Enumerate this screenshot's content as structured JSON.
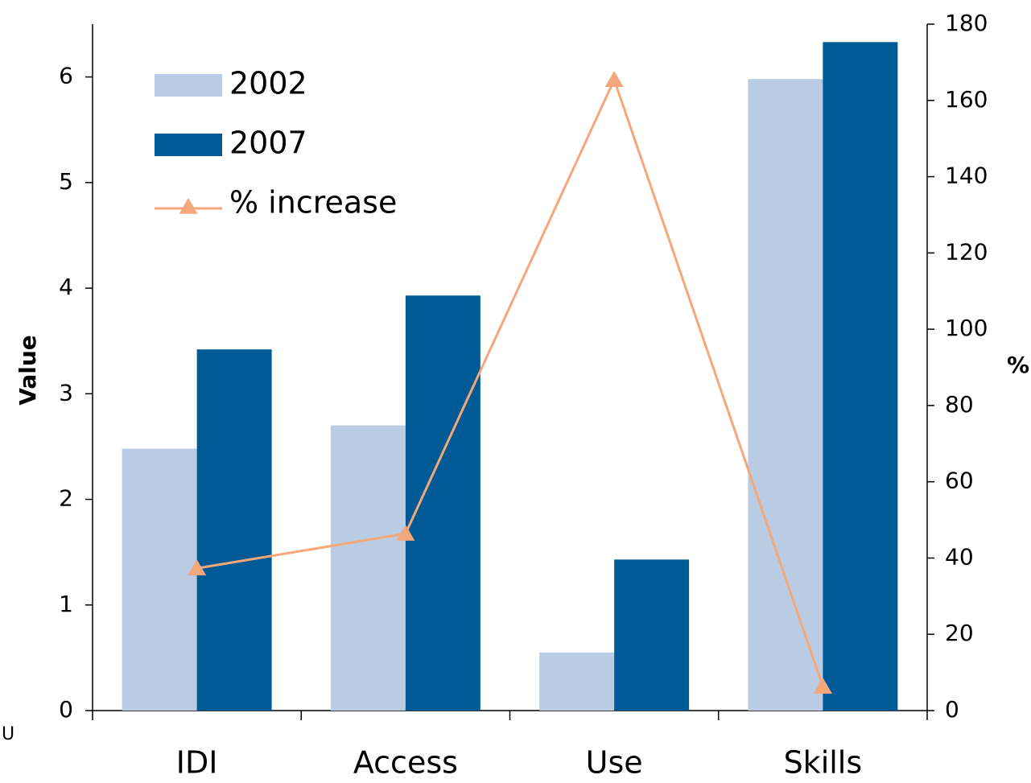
{
  "chart_data": {
    "type": "bar_line",
    "categories": [
      "IDI",
      "Access",
      "Use",
      "Skills"
    ],
    "series": [
      {
        "name": "2002",
        "color": "#b9cce4",
        "values": [
          2.48,
          2.7,
          0.55,
          5.98
        ]
      },
      {
        "name": "2007",
        "color": "#005a96",
        "values": [
          3.42,
          3.93,
          1.43,
          6.33
        ]
      },
      {
        "name": "% increase",
        "color": "#f4a77a",
        "type": "line",
        "axis": "y2",
        "values": [
          37.3,
          46.4,
          165.4,
          6.3
        ]
      }
    ],
    "ylabel": "Value",
    "y2label": "%",
    "ylim": [
      0,
      6.5
    ],
    "yticks": [
      0,
      1,
      2,
      3,
      4,
      5,
      6
    ],
    "y2lim": [
      0,
      180
    ],
    "y2ticks": [
      0,
      20,
      40,
      60,
      80,
      100,
      120,
      140,
      160,
      180
    ],
    "legend": "upper left",
    "annotation": "U"
  }
}
